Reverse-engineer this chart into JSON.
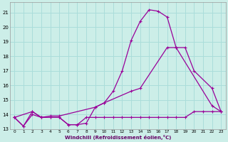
{
  "xlabel": "Windchill (Refroidissement éolien,°C)",
  "bg_color": "#cceee8",
  "grid_color": "#aaddda",
  "line_color": "#990099",
  "xlim": [
    -0.5,
    23.5
  ],
  "ylim": [
    13.0,
    21.7
  ],
  "xticks": [
    0,
    1,
    2,
    3,
    4,
    5,
    6,
    7,
    8,
    9,
    10,
    11,
    12,
    13,
    14,
    15,
    16,
    17,
    18,
    19,
    20,
    21,
    22,
    23
  ],
  "yticks": [
    13,
    14,
    15,
    16,
    17,
    18,
    19,
    20,
    21
  ],
  "line1_x": [
    0,
    1,
    2,
    3,
    4,
    5,
    6,
    7,
    8,
    9,
    10,
    11,
    12,
    13,
    14,
    15,
    16,
    17,
    18,
    22,
    23
  ],
  "line1_y": [
    13.8,
    13.2,
    14.2,
    13.8,
    13.8,
    13.8,
    13.3,
    13.3,
    13.4,
    14.5,
    14.8,
    15.6,
    17.0,
    19.1,
    20.4,
    21.2,
    21.1,
    20.7,
    18.6,
    14.6,
    14.2
  ],
  "line2_x": [
    0,
    2,
    3,
    4,
    5,
    9,
    10,
    13,
    14,
    17,
    18,
    19,
    20,
    22,
    23
  ],
  "line2_y": [
    13.8,
    14.2,
    13.8,
    13.9,
    13.9,
    14.5,
    14.8,
    15.6,
    15.8,
    18.6,
    18.6,
    18.6,
    17.0,
    15.8,
    14.2
  ],
  "line3_x": [
    0,
    1,
    2,
    3,
    4,
    5,
    6,
    7,
    8,
    9,
    10,
    11,
    12,
    13,
    14,
    15,
    16,
    17,
    18,
    19,
    20,
    21,
    22,
    23
  ],
  "line3_y": [
    13.8,
    13.2,
    14.0,
    13.8,
    13.8,
    13.8,
    13.3,
    13.3,
    13.8,
    13.8,
    13.8,
    13.8,
    13.8,
    13.8,
    13.8,
    13.8,
    13.8,
    13.8,
    13.8,
    13.8,
    14.2,
    14.2,
    14.2,
    14.2
  ]
}
